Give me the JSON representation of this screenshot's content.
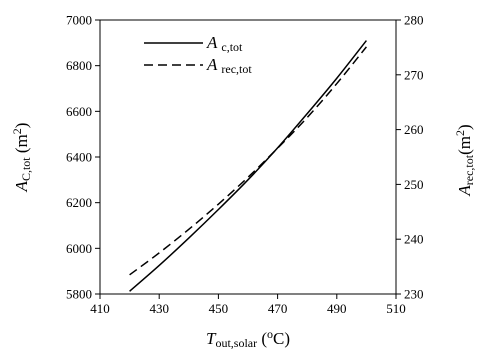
{
  "chart_data": {
    "type": "line",
    "xlabel": {
      "main": "T",
      "sub": "out,solar",
      "rest": " (",
      "sup": "o",
      "tail": "C)"
    },
    "ylabel_left": {
      "main": "A",
      "sub": "C,tot",
      "rest": " (m",
      "sup": "2",
      "tail": ")"
    },
    "ylabel_right": {
      "main": "A",
      "sub": "rec,tot",
      "rest": "(m",
      "sup": "2",
      "tail": ")"
    },
    "xlim": [
      410,
      510
    ],
    "xticks": [
      410,
      430,
      450,
      470,
      490,
      510
    ],
    "ylim_left": [
      5800,
      7000
    ],
    "yticks_left": [
      5800,
      6000,
      6200,
      6400,
      6600,
      6800,
      7000
    ],
    "ylim_right": [
      230,
      280
    ],
    "yticks_right": [
      230,
      240,
      250,
      260,
      270,
      280
    ],
    "legend_position": "top-left",
    "grid": false,
    "series": [
      {
        "name_main": "A",
        "name_sub": "c,tot",
        "axis": "left",
        "style": "solid",
        "x": [
          420,
          430,
          440,
          450,
          460,
          470,
          480,
          490,
          500
        ],
        "y": [
          5812,
          5925,
          6045,
          6170,
          6300,
          6440,
          6590,
          6745,
          6910
        ]
      },
      {
        "name_main": "A",
        "name_sub": "rec,tot",
        "axis": "right",
        "style": "dashed",
        "x": [
          420,
          430,
          440,
          450,
          460,
          470,
          480,
          490,
          500
        ],
        "y": [
          233.5,
          237.5,
          241.8,
          246.4,
          251.3,
          256.6,
          262.2,
          268.4,
          275.1
        ]
      }
    ]
  }
}
